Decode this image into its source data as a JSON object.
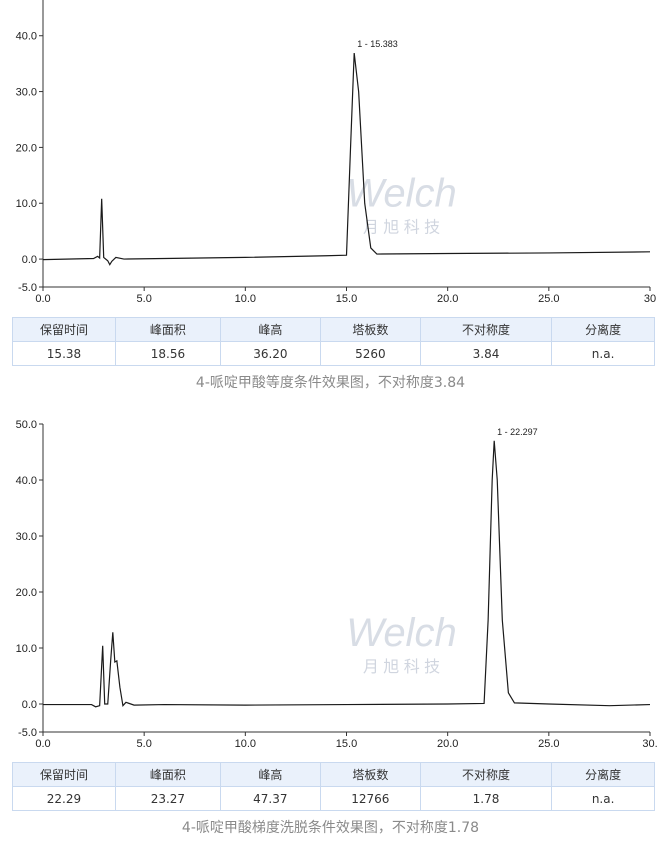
{
  "chart_data": [
    {
      "type": "line",
      "x": [
        0,
        2.5,
        2.7,
        2.8,
        2.9,
        3.0,
        3.2,
        3.3,
        3.4,
        3.6,
        4.0,
        6,
        10,
        14,
        15.0,
        15.2,
        15.38,
        15.6,
        15.9,
        16.2,
        16.5,
        20,
        25,
        30
      ],
      "series": [
        {
          "color": "#1a1a1a",
          "values": [
            -0.1,
            0.1,
            0.5,
            0.2,
            10.8,
            0.3,
            -0.3,
            -1.0,
            -0.4,
            0.3,
            0,
            0.1,
            0.3,
            0.6,
            0.7,
            20,
            36.9,
            30,
            10,
            2,
            0.9,
            1.0,
            1.1,
            1.3
          ]
        }
      ],
      "xlim": [
        0,
        30
      ],
      "xticks": [
        {
          "value": 0,
          "label": "0.0"
        },
        {
          "value": 5,
          "label": "5.0"
        },
        {
          "value": 10,
          "label": "10.0"
        },
        {
          "value": 15,
          "label": "15.0"
        },
        {
          "value": 20,
          "label": "20.0"
        },
        {
          "value": 25,
          "label": "25.0"
        },
        {
          "value": 30,
          "label": "30"
        }
      ],
      "ylim": [
        -5,
        46.4
      ],
      "yticks": [
        {
          "value": -5,
          "label": "-5.0"
        },
        {
          "value": 0,
          "label": "0.0"
        },
        {
          "value": 10,
          "label": "10.0"
        },
        {
          "value": 20,
          "label": "20.0"
        },
        {
          "value": 30,
          "label": "30.0"
        },
        {
          "value": 40,
          "label": "40.0"
        }
      ],
      "annotations": [
        {
          "text": "1 - 15.383",
          "x": 15.383,
          "y": 36.9
        }
      ],
      "watermark": {
        "title": "Welch",
        "subtitle": "月 旭 科 技"
      }
    },
    {
      "type": "line",
      "x": [
        0,
        2.4,
        2.6,
        2.8,
        2.95,
        3.05,
        3.2,
        3.35,
        3.45,
        3.55,
        3.65,
        3.8,
        3.95,
        4.1,
        4.5,
        6,
        10,
        15,
        20,
        21.8,
        22.0,
        22.2,
        22.3,
        22.45,
        22.7,
        23.0,
        23.3,
        25,
        28,
        30
      ],
      "series": [
        {
          "color": "#1a1a1a",
          "values": [
            -0.1,
            -0.1,
            -0.5,
            -0.3,
            10.4,
            0,
            0,
            8,
            12.8,
            7.5,
            7.7,
            3,
            -0.3,
            0.3,
            -0.2,
            -0.1,
            -0.2,
            -0.1,
            0,
            0.1,
            15,
            40,
            47,
            40,
            15,
            2,
            0.2,
            0,
            -0.3,
            -0.1
          ]
        }
      ],
      "xlim": [
        0,
        30
      ],
      "xticks": [
        {
          "value": 0,
          "label": "0.0"
        },
        {
          "value": 5,
          "label": "5.0"
        },
        {
          "value": 10,
          "label": "10.0"
        },
        {
          "value": 15,
          "label": "15.0"
        },
        {
          "value": 20,
          "label": "20.0"
        },
        {
          "value": 25,
          "label": "25.0"
        },
        {
          "value": 30,
          "label": "30."
        }
      ],
      "ylim": [
        -5,
        50
      ],
      "yticks": [
        {
          "value": -5,
          "label": "-5.0"
        },
        {
          "value": 0,
          "label": "0.0"
        },
        {
          "value": 10,
          "label": "10.0"
        },
        {
          "value": 20,
          "label": "20.0"
        },
        {
          "value": 30,
          "label": "30.0"
        },
        {
          "value": 40,
          "label": "40.0"
        },
        {
          "value": 50,
          "label": "50.0"
        }
      ],
      "annotations": [
        {
          "text": "1 - 22.297",
          "x": 22.297,
          "y": 47
        }
      ],
      "watermark": {
        "title": "Welch",
        "subtitle": "月 旭 科 技"
      }
    }
  ],
  "tables": [
    {
      "header": [
        "保留时间",
        "峰面积",
        "峰高",
        "塔板数",
        "不对称度",
        "分离度"
      ],
      "rows": [
        [
          "15.38",
          "18.56",
          "36.20",
          "5260",
          "3.84",
          "n.a."
        ]
      ]
    },
    {
      "header": [
        "保留时间",
        "峰面积",
        "峰高",
        "塔板数",
        "不对称度",
        "分离度"
      ],
      "rows": [
        [
          "22.29",
          "23.27",
          "47.37",
          "12766",
          "1.78",
          "n.a."
        ]
      ]
    }
  ],
  "captions": [
    "4-哌啶甲酸等度条件效果图，不对称度3.84",
    "4-哌啶甲酸梯度洗脱条件效果图，不对称度1.78"
  ]
}
